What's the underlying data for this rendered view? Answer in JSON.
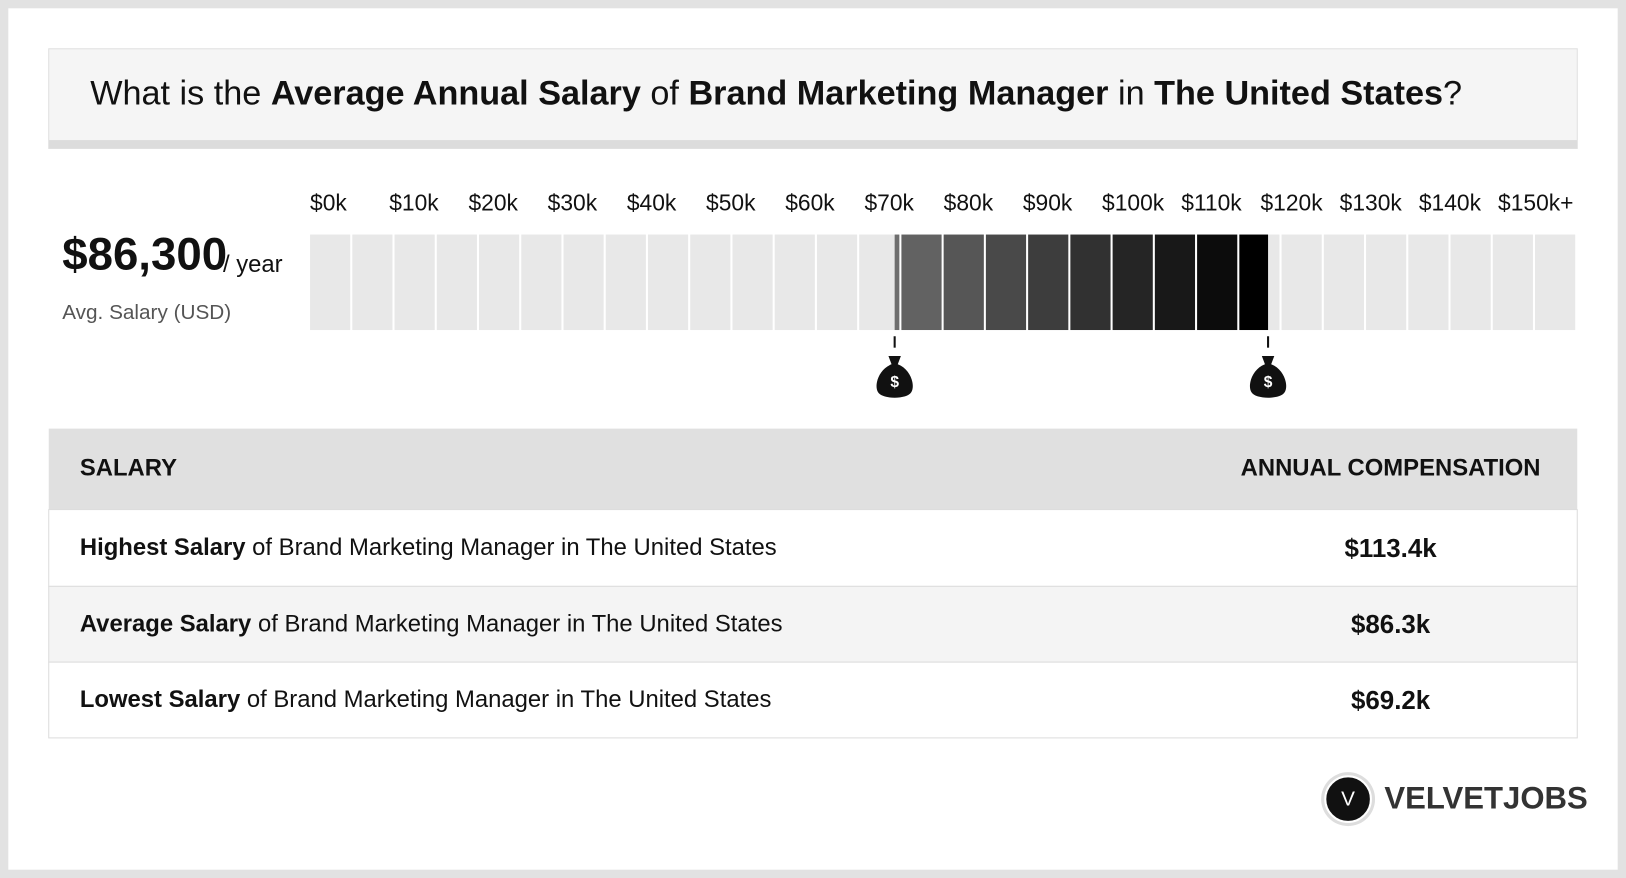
{
  "header": {
    "title_parts": [
      {
        "text": "What is the ",
        "bold": false
      },
      {
        "text": "Average Annual Salary",
        "bold": true
      },
      {
        "text": " of ",
        "bold": false
      },
      {
        "text": "Brand Marketing Manager",
        "bold": true
      },
      {
        "text": " in ",
        "bold": false
      },
      {
        "text": "The United States",
        "bold": true
      },
      {
        "text": "?",
        "bold": false
      }
    ]
  },
  "summary": {
    "average": {
      "value": 86300,
      "label": "$86,300"
    },
    "unit": "/ year",
    "caption": "Avg. Salary (USD)"
  },
  "scale": {
    "ticks": [
      {
        "value": 0,
        "label": "$0k"
      },
      {
        "value": 10000,
        "label": "$10k"
      },
      {
        "value": 20000,
        "label": "$20k"
      },
      {
        "value": 30000,
        "label": "$30k"
      },
      {
        "value": 40000,
        "label": "$40k"
      },
      {
        "value": 50000,
        "label": "$50k"
      },
      {
        "value": 60000,
        "label": "$60k"
      },
      {
        "value": 70000,
        "label": "$70k"
      },
      {
        "value": 80000,
        "label": "$80k"
      },
      {
        "value": 90000,
        "label": "$90k"
      },
      {
        "value": 100000,
        "label": "$100k"
      },
      {
        "value": 110000,
        "label": "$110k"
      },
      {
        "value": 120000,
        "label": "$120k"
      },
      {
        "value": 130000,
        "label": "$130k"
      },
      {
        "value": 140000,
        "label": "$140k"
      },
      {
        "value": 150000,
        "label": "$150k+"
      }
    ]
  },
  "table": {
    "headers": [
      "SALARY",
      "ANNUAL COMPENSATION"
    ],
    "rows": [
      {
        "bold": "Highest Salary",
        "rest": " of Brand Marketing Manager in The United States",
        "value": 113400,
        "value_label": "$113.4k"
      },
      {
        "bold": "Average Salary",
        "rest": " of Brand Marketing Manager in The United States",
        "value": 86300,
        "value_label": "$86.3k"
      },
      {
        "bold": "Lowest Salary",
        "rest": " of Brand Marketing Manager in The United States",
        "value": 69200,
        "value_label": "$69.2k"
      }
    ]
  },
  "brand": {
    "logo_letter": "V",
    "name": "VELVETJOBS"
  }
}
